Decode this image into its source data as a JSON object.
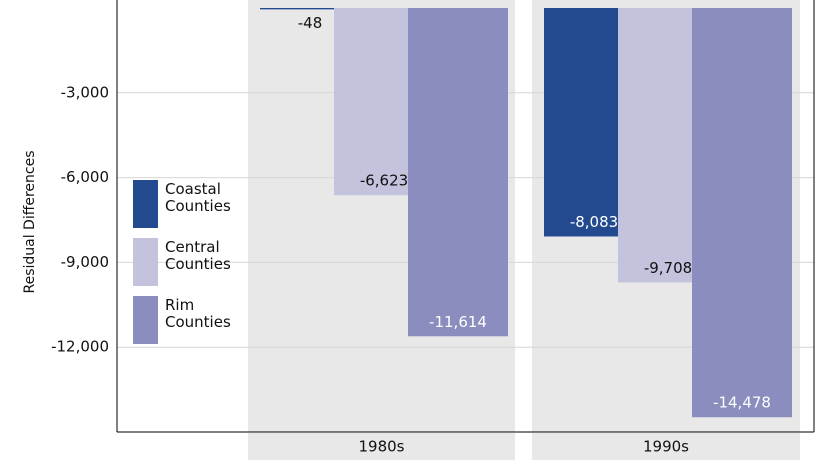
{
  "chart_data": {
    "type": "bar",
    "y_label": "Residual Differences",
    "categories": [
      "1980s",
      "1990s"
    ],
    "series": [
      {
        "name": "Coastal Counties",
        "color": "#234a8f",
        "values": [
          -48,
          -8083
        ],
        "value_labels": [
          "-48",
          "-8,083"
        ]
      },
      {
        "name": "Central Counties",
        "color": "#c3c3de",
        "values": [
          -6623,
          -9708
        ],
        "value_labels": [
          "-6,623",
          "-9,708"
        ]
      },
      {
        "name": "Rim Counties",
        "color": "#8a8dbd",
        "values": [
          -11614,
          -14478
        ],
        "value_labels": [
          "-11,614",
          "-14,478"
        ]
      }
    ],
    "ylim": [
      -15000,
      0
    ],
    "yticks": [
      {
        "value": -3000,
        "label": "-3,000"
      },
      {
        "value": -6000,
        "label": "-6,000"
      },
      {
        "value": -9000,
        "label": "-9,000"
      },
      {
        "value": -12000,
        "label": "-12,000"
      }
    ],
    "grid": true,
    "legend": "left"
  }
}
